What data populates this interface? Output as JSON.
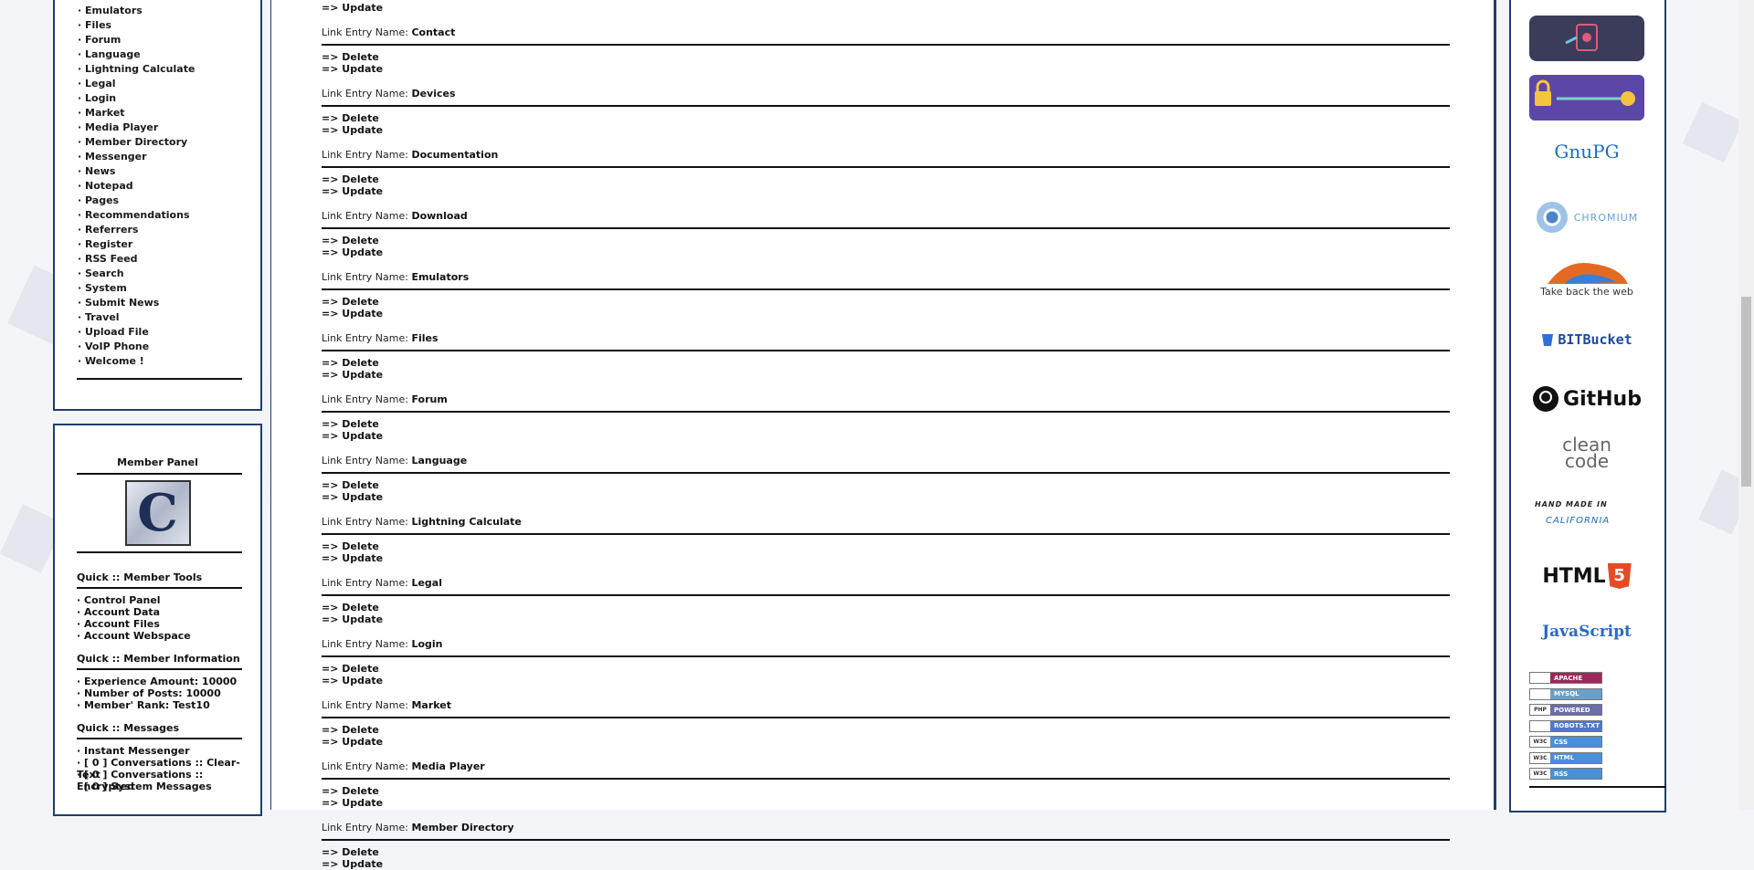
{
  "nav": {
    "items": [
      "· Emulators",
      "· Files",
      "· Forum",
      "· Language",
      "· Lightning Calculate",
      "· Legal",
      "· Login",
      "· Market",
      "· Media Player",
      "· Member Directory",
      "· Messenger",
      "· News",
      "· Notepad",
      "· Pages",
      "· Recommendations",
      "· Referrers",
      "· Register",
      "· RSS Feed",
      "· Search",
      "· System",
      "· Submit News",
      "· Travel",
      "· Upload File",
      "· VoIP Phone",
      "· Welcome !"
    ]
  },
  "member_panel": {
    "title": "Member Panel",
    "avatar_letter": "C",
    "tools_title": "Quick :: Member Tools",
    "tools": [
      "· Control Panel",
      "· Account Data",
      "· Account Files",
      "· Account Webspace"
    ],
    "info_title": "Quick :: Member Information",
    "info": [
      "· Experience Amount: 10000",
      "· Number of Posts: 10000",
      "· Member' Rank: Test10"
    ],
    "messages_title": "Quick :: Messages",
    "messages": [
      "· Instant Messenger",
      "· [ 0 ] Conversations :: Clear-Text",
      "· [ 0 ] Conversations :: Encrypted",
      "· [ 0 ] System Messages"
    ]
  },
  "main": {
    "top_update": "=> Update",
    "entry_label": "Link Entry Name:",
    "delete_label": "=> Delete",
    "update_label": "=> Update",
    "entries": [
      "Contact",
      "Devices",
      "Documentation",
      "Download",
      "Emulators",
      "Files",
      "Forum",
      "Language",
      "Lightning Calculate",
      "Legal",
      "Login",
      "Market",
      "Media Player",
      "Member Directory"
    ]
  },
  "right": {
    "gnupg": "GnuPG",
    "chromium": "CHROMIUM",
    "firefox": "Take back the web",
    "bitbucket": "BITBucket",
    "github": "GitHub",
    "cleancode_1": "clean",
    "cleancode_2": "code",
    "handmade_1": "HAND MADE IN",
    "handmade_2": "CALIFORNIA",
    "html5": "HTML",
    "html5_num": "5",
    "javascript": "JavaScript",
    "badges": [
      {
        "left": "",
        "right": "APACHE",
        "color": "#9a2a5a"
      },
      {
        "left": "",
        "right": "MYSQL",
        "color": "#6aa0c8"
      },
      {
        "left": "PHP",
        "right": "POWERED",
        "color": "#6b6ea8"
      },
      {
        "left": "",
        "right": "ROBOTS.TXT",
        "color": "#4a7ac8"
      },
      {
        "left": "W3C",
        "right": "CSS",
        "color": "#4a90d8"
      },
      {
        "left": "W3C",
        "right": "HTML",
        "color": "#4a90d8"
      },
      {
        "left": "W3C",
        "right": "RSS",
        "color": "#4a90d8"
      }
    ]
  }
}
